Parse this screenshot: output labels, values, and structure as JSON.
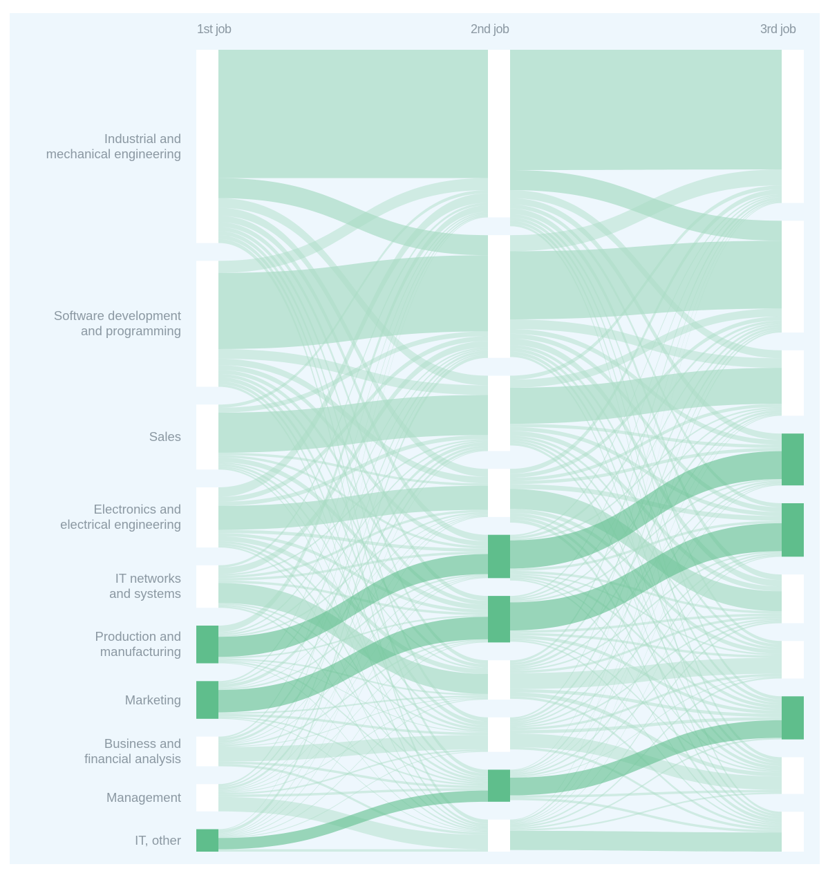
{
  "chart_data": {
    "type": "sankey",
    "columns": [
      "1st job",
      "2nd job",
      "3rd job"
    ],
    "categories": [
      "Industrial and\nmechanical engineering",
      "Software development\nand programming",
      "Sales",
      "Electronics and\nelectrical engineering",
      "IT networks\nand systems",
      "Production and\nmanufacturing",
      "Marketing",
      "Business and\nfinancial analysis",
      "Management",
      "IT, other"
    ],
    "highlighted_nodes": [
      [
        5,
        6,
        9
      ],
      [
        4,
        5,
        8
      ],
      [
        3,
        4,
        7
      ]
    ],
    "flows_1st_to_2nd": [
      [
        160,
        25,
        12,
        10,
        8,
        6,
        5,
        5,
        5,
        5
      ],
      [
        15,
        95,
        12,
        8,
        6,
        5,
        4,
        5,
        4,
        3
      ],
      [
        4,
        6,
        50,
        3,
        3,
        6,
        2,
        3,
        2,
        2
      ],
      [
        12,
        6,
        5,
        30,
        4,
        4,
        6,
        3,
        3,
        2
      ],
      [
        3,
        8,
        2,
        3,
        3,
        3,
        25,
        2,
        2,
        2
      ],
      [
        8,
        2,
        2,
        2,
        25,
        2,
        2,
        1,
        2,
        1
      ],
      [
        2,
        2,
        4,
        1,
        2,
        28,
        2,
        3,
        2,
        1
      ],
      [
        2,
        3,
        3,
        1,
        1,
        2,
        1,
        18,
        3,
        3
      ],
      [
        2,
        2,
        3,
        1,
        1,
        1,
        1,
        2,
        3,
        18
      ],
      [
        1,
        4,
        1,
        1,
        1,
        1,
        1,
        1,
        14,
        3
      ]
    ],
    "flows_2nd_to_3rd": [
      [
        150,
        25,
        10,
        8,
        5,
        7,
        4,
        4,
        4,
        3
      ],
      [
        20,
        85,
        12,
        6,
        6,
        8,
        4,
        4,
        4,
        3
      ],
      [
        5,
        10,
        45,
        4,
        5,
        6,
        3,
        3,
        3,
        3
      ],
      [
        6,
        5,
        4,
        4,
        6,
        25,
        5,
        4,
        4,
        4
      ],
      [
        2,
        3,
        2,
        35,
        3,
        3,
        2,
        3,
        2,
        2
      ],
      [
        2,
        2,
        2,
        2,
        35,
        3,
        3,
        4,
        2,
        2
      ],
      [
        3,
        3,
        3,
        2,
        2,
        3,
        20,
        4,
        5,
        3
      ],
      [
        2,
        3,
        2,
        2,
        2,
        2,
        3,
        4,
        17,
        3
      ],
      [
        1,
        2,
        1,
        1,
        2,
        2,
        1,
        22,
        3,
        3
      ],
      [
        1,
        2,
        1,
        1,
        1,
        2,
        2,
        2,
        2,
        24
      ]
    ],
    "highlighted_flows": [
      [
        [
          5,
          4
        ],
        [
          6,
          5
        ],
        [
          9,
          8
        ]
      ],
      [
        [
          4,
          3
        ],
        [
          5,
          4
        ],
        [
          8,
          7
        ]
      ]
    ]
  },
  "colors": {
    "background": "#eef7fd",
    "node": "#ffffff",
    "node_highlight": "#5fbe8c",
    "link": "#a9dcc4",
    "link_highlight": "#5fbe8c",
    "text": "#8b98a2"
  }
}
